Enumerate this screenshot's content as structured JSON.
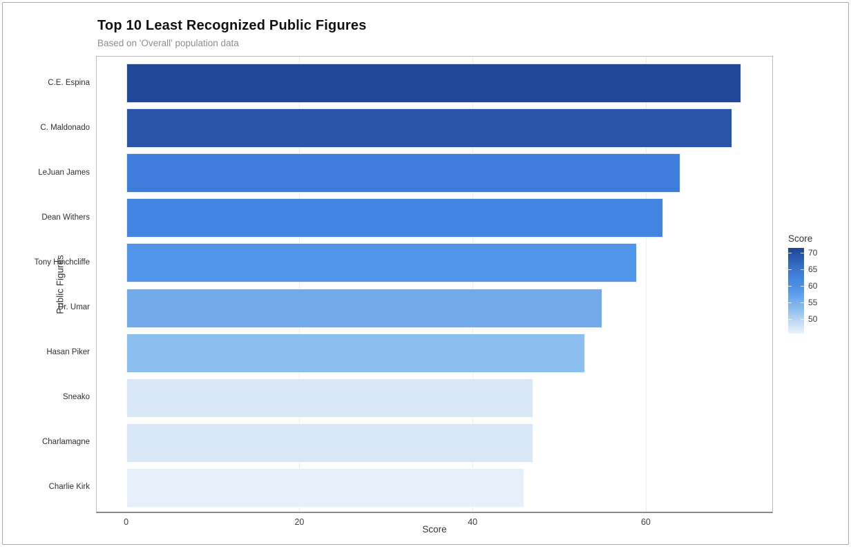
{
  "chart_data": {
    "type": "bar",
    "orientation": "horizontal",
    "title": "Top 10 Least Recognized Public Figures",
    "subtitle": "Based on 'Overall' population data",
    "xlabel": "Score",
    "ylabel": "Public Figures",
    "categories": [
      "C.E. Espina",
      "C. Maldonado",
      "LeJuan James",
      "Dean Withers",
      "Tony Hinchcliffe",
      "Dr. Umar",
      "Hasan Piker",
      "Sneako",
      "Charlamagne",
      "Charlie Kirk"
    ],
    "values": [
      71,
      70,
      64,
      62,
      59,
      55,
      53,
      47,
      47,
      46
    ],
    "bar_colors": [
      "#1f489b",
      "#2a54a7",
      "#3d7cd8",
      "#4384e0",
      "#5095e9",
      "#73aae9",
      "#8cbdef",
      "#d9e8f7",
      "#d9e8f7",
      "#e6f0fa"
    ],
    "xticks": [
      0,
      20,
      40,
      60
    ],
    "xlim": [
      -3.4,
      74.6
    ],
    "grid": "vertical-light",
    "legend_position": "right",
    "colorbar": {
      "title": "Score",
      "ticks": [
        70,
        65,
        60,
        55,
        50
      ],
      "domain": [
        45.5,
        71.5
      ],
      "gradient_stops": [
        {
          "v": 71.5,
          "c": "#1c469a"
        },
        {
          "v": 71.0,
          "c": "#1f489b"
        },
        {
          "v": 64.0,
          "c": "#3d7cd8"
        },
        {
          "v": 59.0,
          "c": "#5095e9"
        },
        {
          "v": 53.0,
          "c": "#8cbdef"
        },
        {
          "v": 47.0,
          "c": "#d9e8f7"
        },
        {
          "v": 45.5,
          "c": "#eaf3fc"
        }
      ]
    }
  }
}
